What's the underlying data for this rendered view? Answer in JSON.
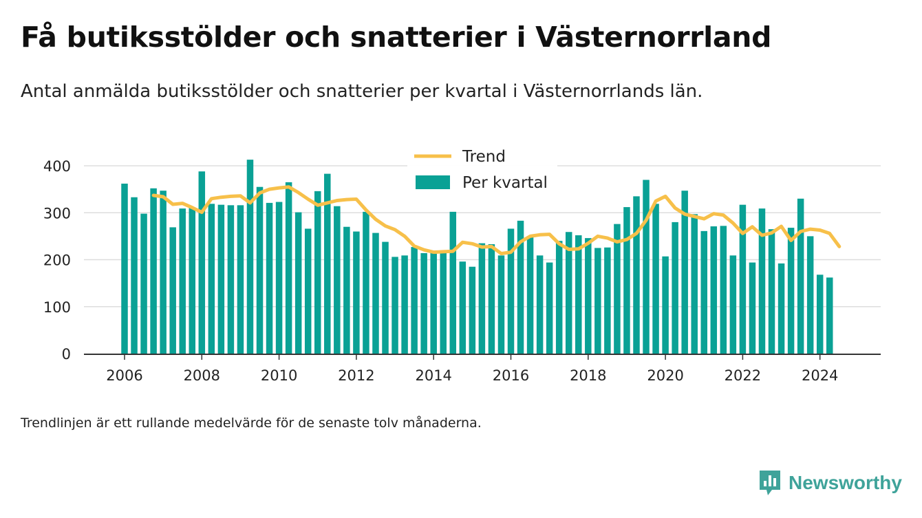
{
  "title": "Få butiksstölder och snatterier i Västernorrland",
  "subtitle": "Antal anmälda butiksstölder och snatterier per kvartal i Västernorrlands län.",
  "footnote": "Trendlinjen är ett rullande medelvärde för de senaste tolv månaderna.",
  "brand": {
    "name": "Newsworthy",
    "color": "#3fa39a",
    "icon": "newsworthy-logo-icon"
  },
  "colors": {
    "bars": "#0aa195",
    "trend": "#f7c04a",
    "grid": "#dddddd",
    "axis": "#333333"
  },
  "chart_data": {
    "type": "bar",
    "title": "Få butiksstölder och snatterier i Västernorrland",
    "ylim": [
      0,
      400
    ],
    "yticks": [
      0,
      100,
      200,
      300,
      400
    ],
    "xticks": [
      2006,
      2008,
      2010,
      2012,
      2014,
      2016,
      2018,
      2020,
      2022,
      2024
    ],
    "x_unit": "year",
    "grid": true,
    "legend_position": "top-center",
    "x_start": 2006.0,
    "x_step": 0.25,
    "series": [
      {
        "name": "Per kvartal",
        "type": "bar",
        "values": [
          362,
          333,
          298,
          352,
          347,
          269,
          309,
          310,
          388,
          319,
          317,
          316,
          316,
          413,
          355,
          321,
          323,
          365,
          301,
          266,
          346,
          383,
          314,
          270,
          260,
          302,
          257,
          238,
          206,
          209,
          227,
          214,
          214,
          216,
          302,
          196,
          185,
          235,
          233,
          209,
          266,
          283,
          250,
          209,
          194,
          240,
          259,
          252,
          246,
          225,
          226,
          276,
          312,
          335,
          370,
          319,
          207,
          280,
          347,
          297,
          261,
          271,
          272,
          209,
          317,
          194,
          309,
          265,
          192,
          268,
          330,
          250,
          168,
          162
        ]
      },
      {
        "name": "Trend",
        "type": "line",
        "x": [
          2006.75,
          2007.0,
          2007.25,
          2007.5,
          2007.75,
          2008.0,
          2008.25,
          2008.5,
          2008.75,
          2009.0,
          2009.25,
          2009.5,
          2009.75,
          2010.0,
          2010.25,
          2010.5,
          2010.75,
          2011.0,
          2011.25,
          2011.5,
          2011.75,
          2012.0,
          2012.25,
          2012.5,
          2012.75,
          2013.0,
          2013.25,
          2013.5,
          2013.75,
          2014.0,
          2014.25,
          2014.5,
          2014.75,
          2015.0,
          2015.25,
          2015.5,
          2015.75,
          2016.0,
          2016.25,
          2016.5,
          2016.75,
          2017.0,
          2017.25,
          2017.5,
          2017.75,
          2018.0,
          2018.25,
          2018.5,
          2018.75,
          2019.0,
          2019.25,
          2019.5,
          2019.75,
          2020.0,
          2020.25,
          2020.5,
          2020.75,
          2021.0,
          2021.25,
          2021.5,
          2021.75,
          2022.0,
          2022.25,
          2022.5,
          2022.75,
          2023.0,
          2023.25,
          2023.5,
          2023.75,
          2024.0,
          2024.25,
          2024.5
        ],
        "values": [
          337,
          334,
          318,
          320,
          311,
          301,
          330,
          333,
          335,
          336,
          321,
          342,
          350,
          353,
          355,
          343,
          329,
          316,
          321,
          326,
          328,
          329,
          306,
          286,
          272,
          264,
          250,
          229,
          221,
          216,
          217,
          218,
          237,
          234,
          227,
          228,
          213,
          216,
          238,
          250,
          253,
          254,
          234,
          222,
          223,
          235,
          250,
          246,
          238,
          243,
          256,
          284,
          325,
          335,
          310,
          297,
          292,
          287,
          298,
          295,
          278,
          256,
          270,
          252,
          257,
          271,
          241,
          260,
          265,
          263,
          256,
          228
        ]
      }
    ]
  }
}
